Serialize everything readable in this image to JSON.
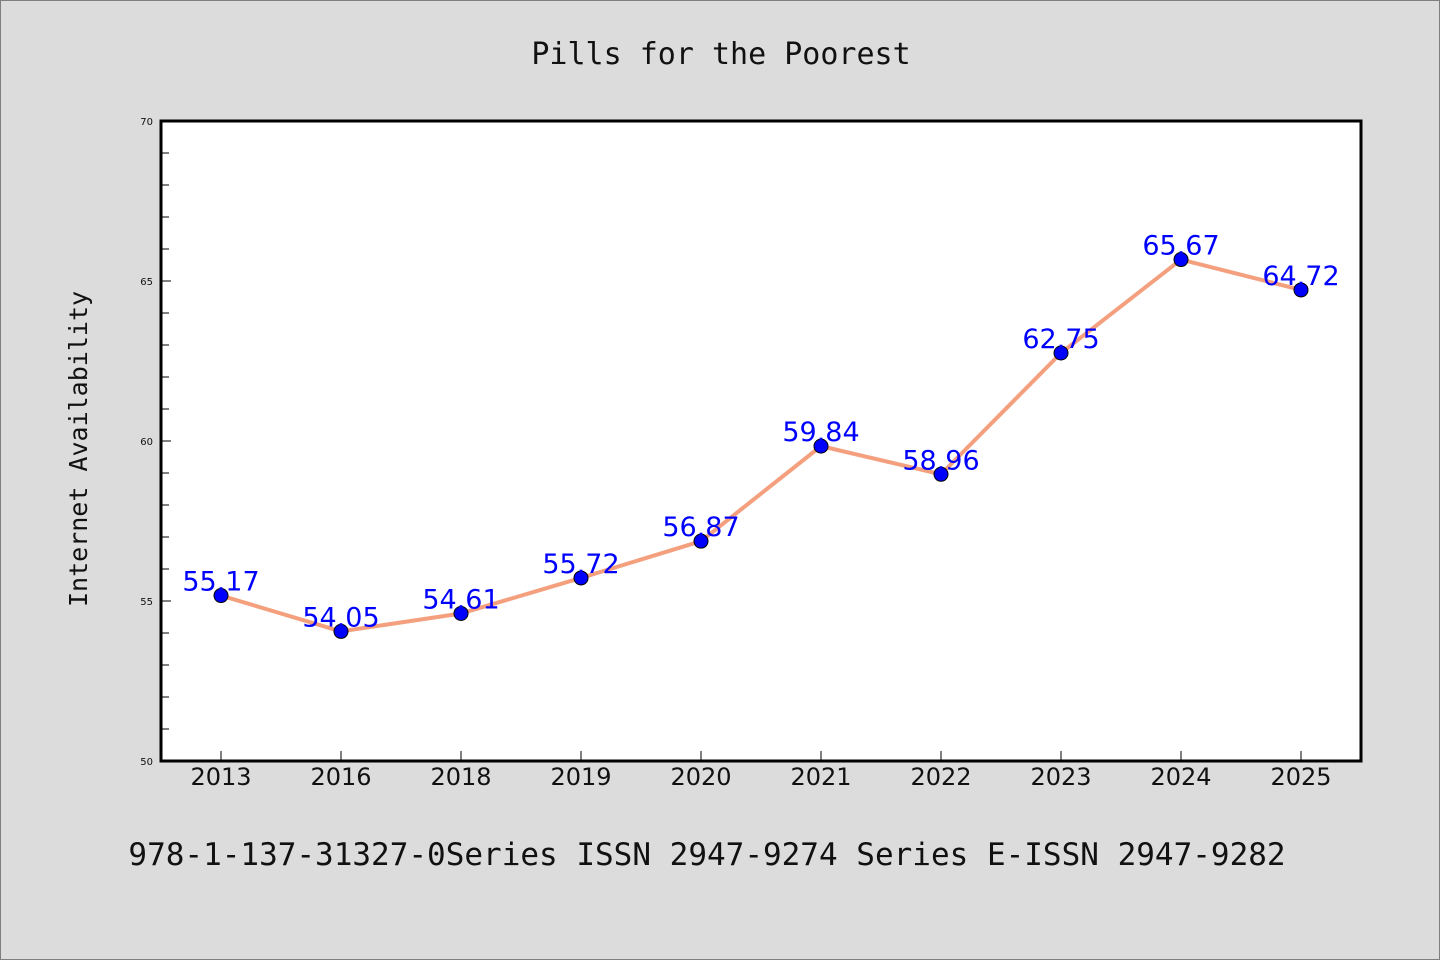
{
  "chart_data": {
    "type": "line",
    "title": "Pills for the Poorest",
    "xlabel": "",
    "ylabel": "Internet Availability",
    "footer": "978-1-137-31327-0Series ISSN 2947-9274 Series E-ISSN 2947-9282",
    "categories": [
      "2013",
      "2016",
      "2018",
      "2019",
      "2020",
      "2021",
      "2022",
      "2023",
      "2024",
      "2025"
    ],
    "series": [
      {
        "values": [
          55.17,
          54.05,
          54.61,
          55.72,
          56.87,
          59.84,
          58.96,
          62.75,
          65.67,
          64.72
        ],
        "labels": [
          "55.17",
          "54.05",
          "54.61",
          "55.72",
          "56.87",
          "59.84",
          "58.96",
          "62.75",
          "65.67",
          "64.72"
        ],
        "line_color": "#f4a07e",
        "marker_color": "#0000ff",
        "label_color": "#0000ff"
      }
    ],
    "ylim": [
      50,
      70
    ],
    "y_ticks": [
      "50",
      "55",
      "60",
      "65",
      "70"
    ],
    "y_minor_step": 1,
    "grid": false,
    "legend": "none"
  }
}
